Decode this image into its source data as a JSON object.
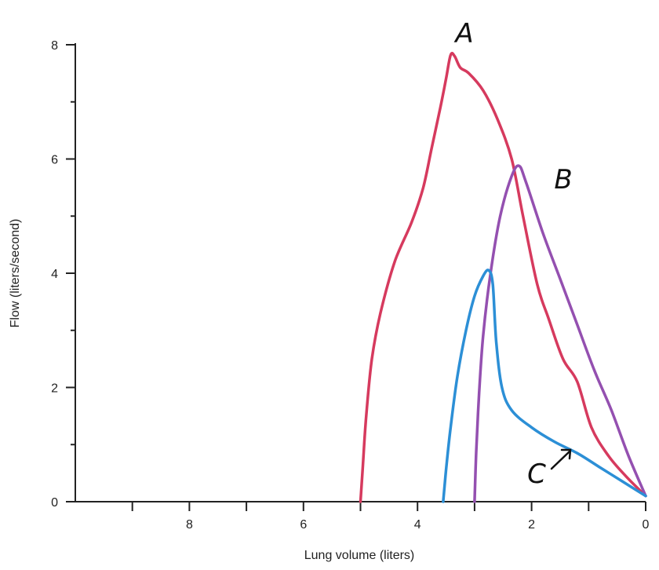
{
  "chart_data": {
    "type": "line",
    "xlabel": "Lung volume (liters)",
    "ylabel": "Flow (liters/second)",
    "xlim": [
      10,
      0
    ],
    "ylim": [
      0,
      8
    ],
    "x_reversed": true,
    "x_ticks": [
      8,
      6,
      4,
      2,
      0
    ],
    "x_minor_ticks": [
      9,
      7,
      5,
      3,
      1
    ],
    "y_ticks": [
      0,
      2,
      4,
      6,
      8
    ],
    "grid": false,
    "series": [
      {
        "name": "A",
        "color": "#d63a5e",
        "points": [
          [
            5.0,
            0.0
          ],
          [
            4.96,
            0.6
          ],
          [
            4.9,
            1.5
          ],
          [
            4.8,
            2.5
          ],
          [
            4.65,
            3.3
          ],
          [
            4.4,
            4.2
          ],
          [
            4.1,
            4.9
          ],
          [
            3.9,
            5.5
          ],
          [
            3.75,
            6.2
          ],
          [
            3.6,
            6.9
          ],
          [
            3.5,
            7.4
          ],
          [
            3.42,
            7.82
          ],
          [
            3.35,
            7.8
          ],
          [
            3.25,
            7.6
          ],
          [
            3.1,
            7.5
          ],
          [
            2.85,
            7.2
          ],
          [
            2.6,
            6.7
          ],
          [
            2.35,
            6.0
          ],
          [
            2.15,
            5.0
          ],
          [
            1.9,
            3.8
          ],
          [
            1.7,
            3.2
          ],
          [
            1.45,
            2.5
          ],
          [
            1.2,
            2.1
          ],
          [
            0.95,
            1.3
          ],
          [
            0.65,
            0.8
          ],
          [
            0.35,
            0.45
          ],
          [
            0.0,
            0.1
          ]
        ]
      },
      {
        "name": "B",
        "color": "#9450b0",
        "points": [
          [
            3.0,
            0.0
          ],
          [
            2.97,
            0.9
          ],
          [
            2.92,
            1.9
          ],
          [
            2.85,
            2.9
          ],
          [
            2.72,
            4.0
          ],
          [
            2.55,
            5.0
          ],
          [
            2.35,
            5.7
          ],
          [
            2.22,
            5.88
          ],
          [
            2.1,
            5.6
          ],
          [
            1.8,
            4.7
          ],
          [
            1.5,
            3.9
          ],
          [
            1.2,
            3.1
          ],
          [
            0.9,
            2.3
          ],
          [
            0.6,
            1.6
          ],
          [
            0.3,
            0.8
          ],
          [
            0.0,
            0.1
          ]
        ]
      },
      {
        "name": "C",
        "color": "#2c8fd6",
        "points": [
          [
            3.55,
            0.0
          ],
          [
            3.5,
            0.55
          ],
          [
            3.42,
            1.3
          ],
          [
            3.3,
            2.2
          ],
          [
            3.15,
            3.0
          ],
          [
            3.0,
            3.6
          ],
          [
            2.85,
            3.95
          ],
          [
            2.75,
            4.05
          ],
          [
            2.68,
            3.8
          ],
          [
            2.62,
            2.8
          ],
          [
            2.52,
            2.0
          ],
          [
            2.35,
            1.6
          ],
          [
            2.0,
            1.3
          ],
          [
            1.6,
            1.05
          ],
          [
            1.2,
            0.85
          ],
          [
            0.8,
            0.6
          ],
          [
            0.4,
            0.35
          ],
          [
            0.0,
            0.1
          ]
        ]
      }
    ]
  }
}
